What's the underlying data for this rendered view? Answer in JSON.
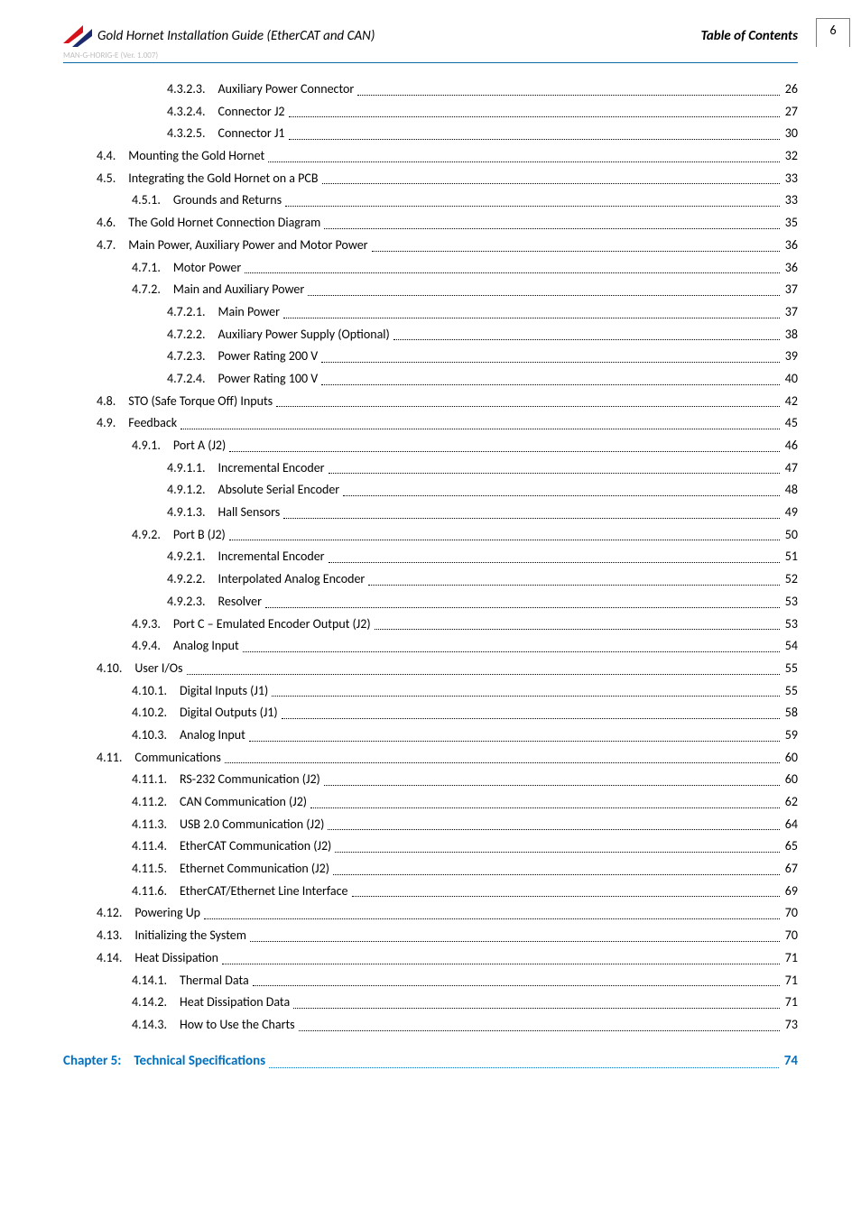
{
  "header": {
    "doc_title": "Gold Hornet Installation Guide (EtherCAT and CAN)",
    "section": "Table of Contents",
    "doc_code": "MAN-G-HORIG-E (Ver. 1.007)",
    "page_number": "6"
  },
  "colors": {
    "accent": "#0070c0",
    "rule": "#0b6aa8",
    "text": "#000000",
    "muted": "#bfbfbf",
    "logo_red": "#d8121b",
    "logo_blue": "#1a2a6c"
  },
  "toc": [
    {
      "indent": 3,
      "num": "4.3.2.3.",
      "label": "Auxiliary Power Connector",
      "page": "26"
    },
    {
      "indent": 3,
      "num": "4.3.2.4.",
      "label": "Connector J2",
      "page": "27"
    },
    {
      "indent": 3,
      "num": "4.3.2.5.",
      "label": "Connector J1",
      "page": "30"
    },
    {
      "indent": 1,
      "num": "4.4.",
      "label": "Mounting the Gold Hornet",
      "page": "32"
    },
    {
      "indent": 1,
      "num": "4.5.",
      "label": "Integrating the Gold Hornet on a PCB",
      "page": "33"
    },
    {
      "indent": 2,
      "num": "4.5.1.",
      "label": "Grounds and Returns",
      "page": "33"
    },
    {
      "indent": 1,
      "num": "4.6.",
      "label": "The Gold Hornet Connection Diagram",
      "page": "35"
    },
    {
      "indent": 1,
      "num": "4.7.",
      "label": "Main Power, Auxiliary Power and Motor Power",
      "page": "36"
    },
    {
      "indent": 2,
      "num": "4.7.1.",
      "label": "Motor Power",
      "page": "36"
    },
    {
      "indent": 2,
      "num": "4.7.2.",
      "label": "Main and Auxiliary Power",
      "page": "37"
    },
    {
      "indent": 3,
      "num": "4.7.2.1.",
      "label": "Main Power",
      "page": "37"
    },
    {
      "indent": 3,
      "num": "4.7.2.2.",
      "label": "Auxiliary Power Supply (Optional)",
      "page": "38"
    },
    {
      "indent": 3,
      "num": "4.7.2.3.",
      "label": "Power Rating 200 V",
      "page": "39"
    },
    {
      "indent": 3,
      "num": "4.7.2.4.",
      "label": "Power Rating 100 V",
      "page": "40"
    },
    {
      "indent": 1,
      "num": "4.8.",
      "label": "STO (Safe Torque Off) Inputs",
      "page": "42"
    },
    {
      "indent": 1,
      "num": "4.9.",
      "label": "Feedback",
      "page": "45"
    },
    {
      "indent": 2,
      "num": "4.9.1.",
      "label": "Port A (J2)",
      "page": "46"
    },
    {
      "indent": 3,
      "num": "4.9.1.1.",
      "label": "Incremental Encoder",
      "page": "47"
    },
    {
      "indent": 3,
      "num": "4.9.1.2.",
      "label": "Absolute Serial Encoder",
      "page": "48"
    },
    {
      "indent": 3,
      "num": "4.9.1.3.",
      "label": "Hall Sensors",
      "page": "49"
    },
    {
      "indent": 2,
      "num": "4.9.2.",
      "label": "Port B (J2)",
      "page": "50"
    },
    {
      "indent": 3,
      "num": "4.9.2.1.",
      "label": "Incremental Encoder",
      "page": "51"
    },
    {
      "indent": 3,
      "num": "4.9.2.2.",
      "label": "Interpolated Analog Encoder",
      "page": "52"
    },
    {
      "indent": 3,
      "num": "4.9.2.3.",
      "label": "Resolver",
      "page": "53"
    },
    {
      "indent": 2,
      "num": "4.9.3.",
      "label": "Port C – Emulated Encoder Output (J2)",
      "page": "53"
    },
    {
      "indent": 2,
      "num": "4.9.4.",
      "label": "Analog Input",
      "page": "54"
    },
    {
      "indent": 1,
      "num": "4.10.",
      "label": "User I/Os",
      "page": "55"
    },
    {
      "indent": 2,
      "num": "4.10.1.",
      "label": "Digital Inputs (J1)",
      "page": "55"
    },
    {
      "indent": 2,
      "num": "4.10.2.",
      "label": "Digital Outputs (J1)",
      "page": "58"
    },
    {
      "indent": 2,
      "num": "4.10.3.",
      "label": "Analog Input",
      "page": "59"
    },
    {
      "indent": 1,
      "num": "4.11.",
      "label": "Communications",
      "page": "60"
    },
    {
      "indent": 2,
      "num": "4.11.1.",
      "label": "RS-232 Communication (J2)",
      "page": "60"
    },
    {
      "indent": 2,
      "num": "4.11.2.",
      "label": "CAN Communication (J2)",
      "page": "62"
    },
    {
      "indent": 2,
      "num": "4.11.3.",
      "label": "USB 2.0 Communication (J2)",
      "page": "64"
    },
    {
      "indent": 2,
      "num": "4.11.4.",
      "label": "EtherCAT Communication (J2)",
      "page": "65"
    },
    {
      "indent": 2,
      "num": "4.11.5.",
      "label": "Ethernet Communication (J2)",
      "page": "67"
    },
    {
      "indent": 2,
      "num": "4.11.6.",
      "label": "EtherCAT/Ethernet Line Interface",
      "page": "69"
    },
    {
      "indent": 1,
      "num": "4.12.",
      "label": "Powering Up",
      "page": "70"
    },
    {
      "indent": 1,
      "num": "4.13.",
      "label": "Initializing the System",
      "page": "70"
    },
    {
      "indent": 1,
      "num": "4.14.",
      "label": "Heat Dissipation",
      "page": "71"
    },
    {
      "indent": 2,
      "num": "4.14.1.",
      "label": "Thermal Data",
      "page": "71"
    },
    {
      "indent": 2,
      "num": "4.14.2.",
      "label": "Heat Dissipation Data",
      "page": "71"
    },
    {
      "indent": 2,
      "num": "4.14.3.",
      "label": "How to Use the Charts",
      "page": "73"
    }
  ],
  "chapter": {
    "num": "Chapter 5:",
    "label": "Technical Specifications",
    "page": "74"
  }
}
